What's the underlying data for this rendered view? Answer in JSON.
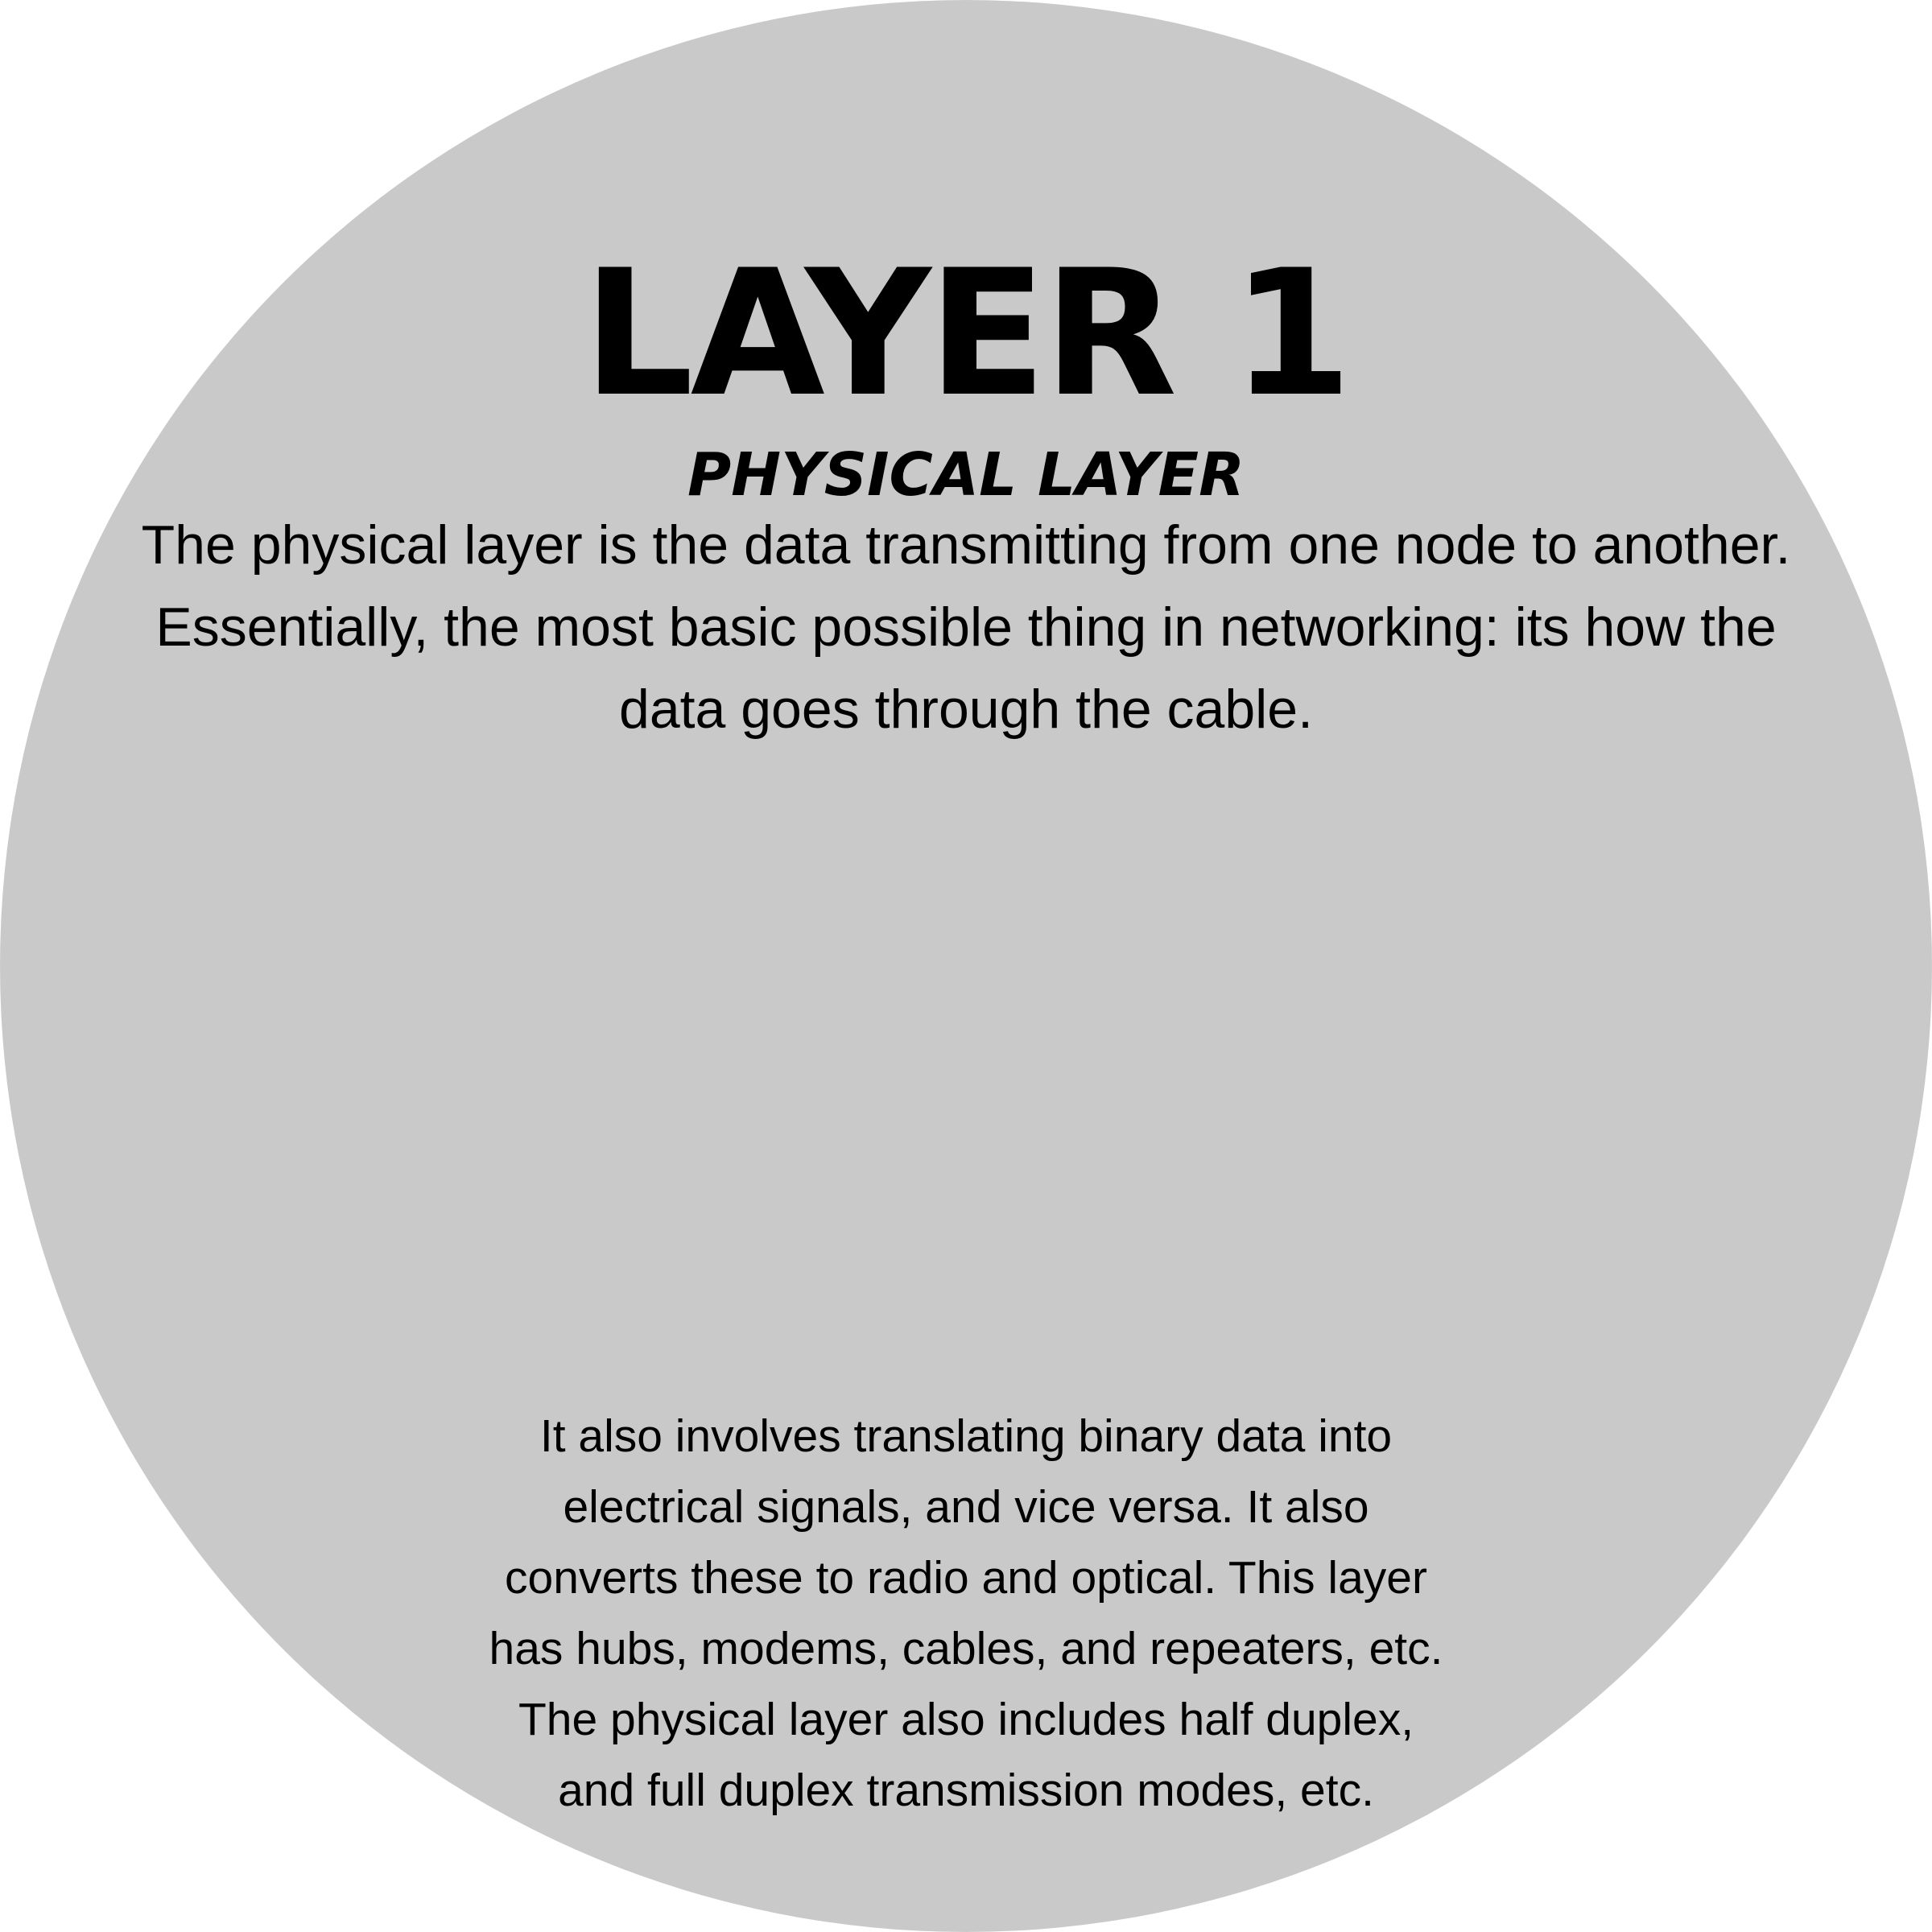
{
  "slide": {
    "background_color": "#ffffff",
    "circle_color": "#c9c9c9",
    "title": "LAYER 1",
    "subtitle": "PHYSICAL LAYER",
    "intro_text": "The physical layer is the data transmitting from one node to another. Essentially, the most basic possible thing in networking: its how the data goes through the cable.",
    "detail_text": "It also involves translating binary data into electrical signals, and vice versa. It also converts these to radio and optical. This layer has hubs, modems, cables, and repeaters, etc. The physical layer also includes half duplex, and full duplex transmission modes, etc."
  }
}
